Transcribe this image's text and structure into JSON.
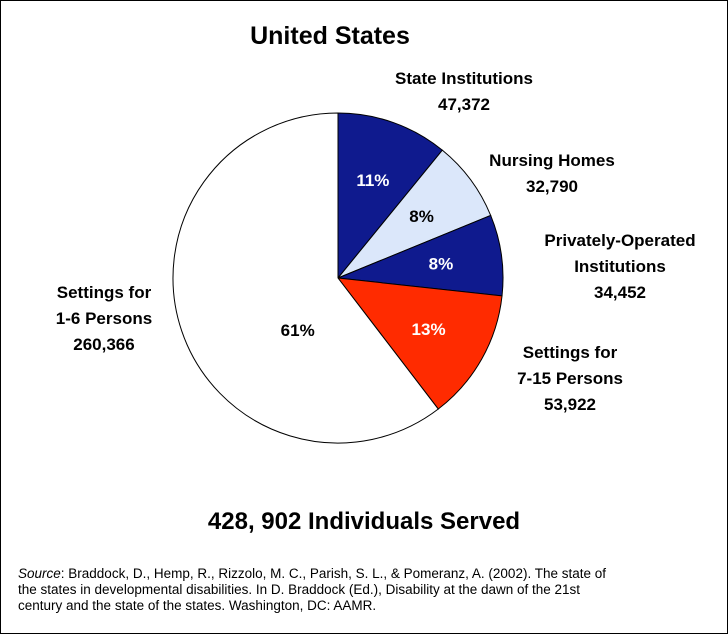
{
  "chart_data": {
    "type": "pie",
    "title": "United States",
    "categories": [
      "State Institutions",
      "Nursing Homes",
      "Privately-Operated\nInstitutions",
      "Settings for\n7-15 Persons",
      "Settings for\n1-6 Persons"
    ],
    "counts": [
      "47,372",
      "32,790",
      "34,452",
      "53,922",
      "260,366"
    ],
    "values": [
      11,
      8,
      8,
      13,
      61
    ],
    "value_labels": [
      "11%",
      "8%",
      "8%",
      "13%",
      "61%"
    ],
    "colors": [
      "#0f1a8e",
      "#dbe7fa",
      "#0f1a8e",
      "#ff2b00",
      "#ffffff"
    ],
    "total_label": "428, 902 Individuals Served",
    "source_label": "Source",
    "source_text": ": Braddock, D., Hemp, R., Rizzolo, M. C., Parish, S. L., & Pomeranz, A. (2002). The state of the states in developmental disabilities. In D. Braddock (Ed.), Disability at the dawn of the 21st century and the state of the states. Washington, DC: AAMR."
  }
}
